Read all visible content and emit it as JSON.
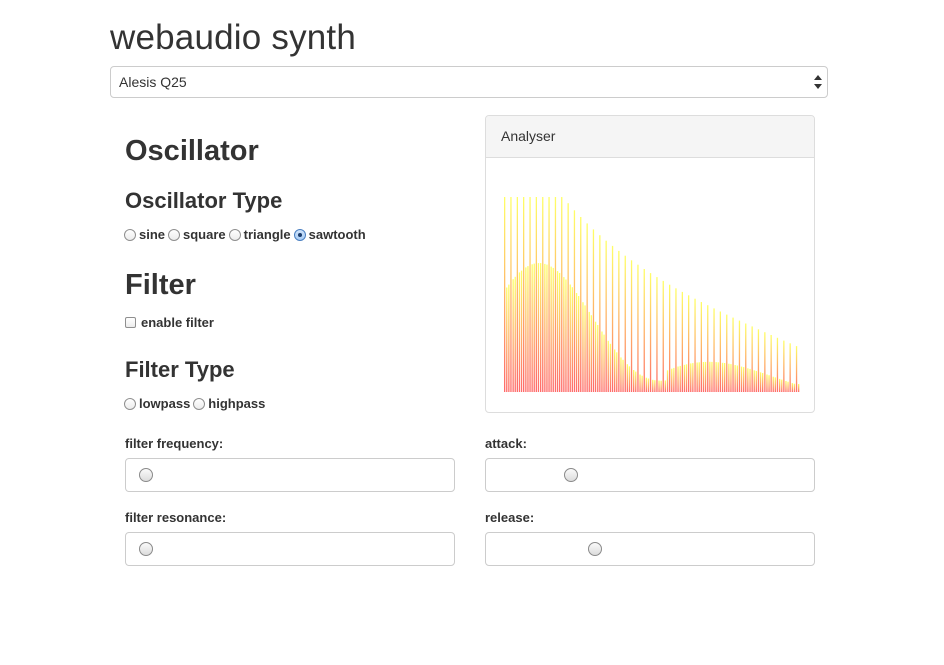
{
  "app": {
    "title": "webaudio synth"
  },
  "device_select": {
    "selected": "Alesis Q25"
  },
  "oscillator": {
    "heading": "Oscillator",
    "type_heading": "Oscillator Type",
    "types": [
      {
        "label": "sine",
        "checked": false
      },
      {
        "label": "square",
        "checked": false
      },
      {
        "label": "triangle",
        "checked": false
      },
      {
        "label": "sawtooth",
        "checked": true
      }
    ]
  },
  "filter": {
    "heading": "Filter",
    "enable_label": "enable filter",
    "enabled": false,
    "type_heading": "Filter Type",
    "types": [
      {
        "label": "lowpass",
        "checked": false
      },
      {
        "label": "highpass",
        "checked": false
      }
    ]
  },
  "analyser": {
    "title": "Analyser",
    "colors": {
      "top": "#ffff66",
      "bottom": "#ff6a6a",
      "stroke": "#b5651d"
    }
  },
  "sliders": {
    "filter_frequency": {
      "label": "filter frequency:",
      "value": 0.0
    },
    "filter_resonance": {
      "label": "filter resonance:",
      "value": 0.0
    },
    "attack": {
      "label": "attack:",
      "value": 0.22
    },
    "release": {
      "label": "release:",
      "value": 0.3
    }
  }
}
